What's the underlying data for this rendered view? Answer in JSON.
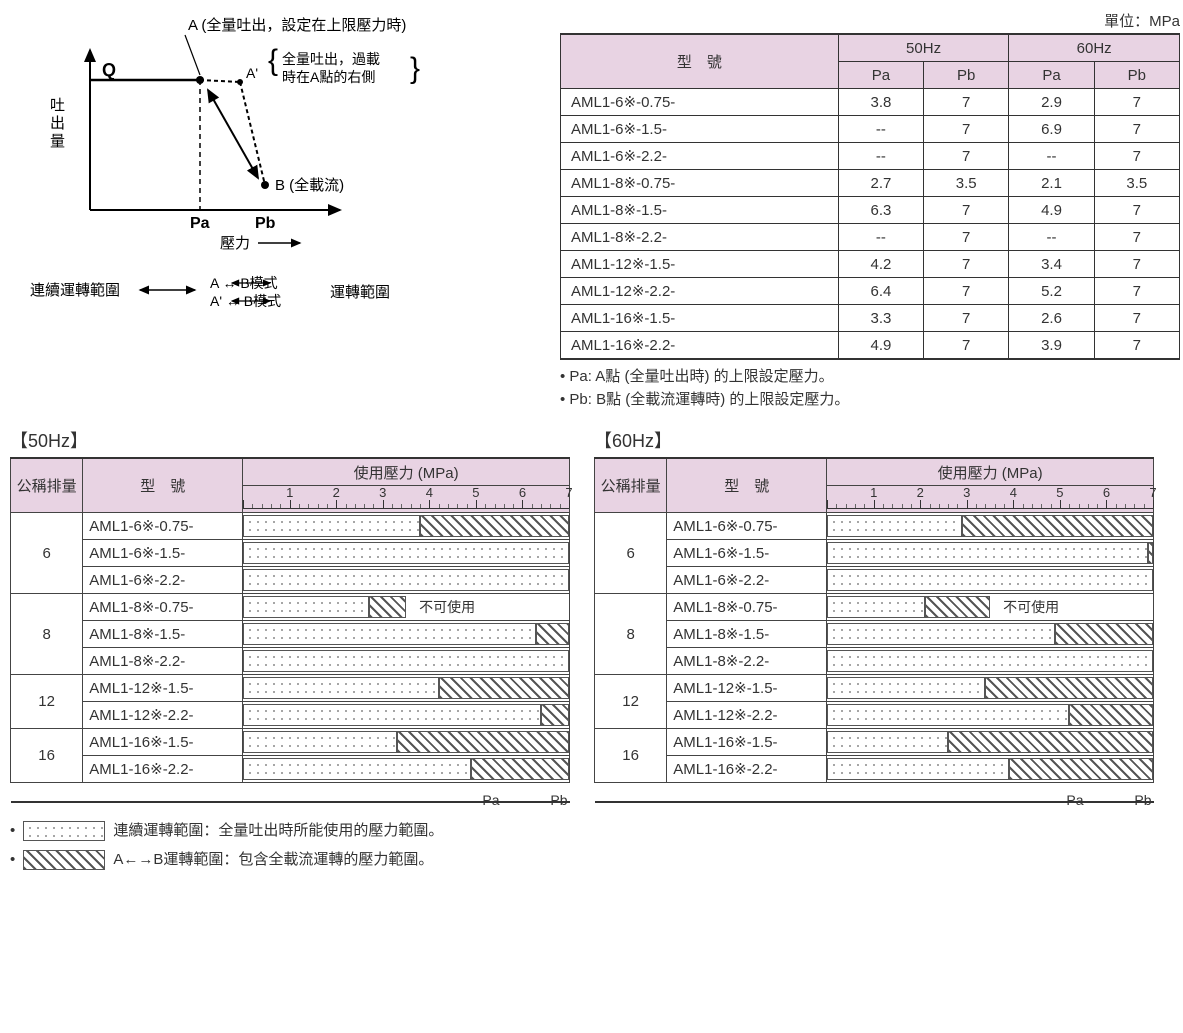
{
  "unit_label": "單位：MPa",
  "diagram": {
    "Q": "Q",
    "y_axis": "吐出量",
    "x_axis": "壓力",
    "Pa": "Pa",
    "Pb": "Pb",
    "A_label": "A (全量吐出，設定在上限壓力時)",
    "A_prime": "A'",
    "A_prime_note1": "全量吐出，過載",
    "A_prime_note2": "時在A點的右側",
    "B_label": "B (全載流)",
    "cont_label": "連續運轉範圍",
    "mode1": "A ↔ B模式",
    "mode2": "A' ↔ B模式",
    "mode_suffix": "運轉範圍"
  },
  "spec_table": {
    "hdr_model": "型　號",
    "hdr_50": "50Hz",
    "hdr_60": "60Hz",
    "hdr_pa": "Pa",
    "hdr_pb": "Pb",
    "rows": [
      {
        "model": "AML1-6※-0.75-",
        "pa50": "3.8",
        "pb50": "7",
        "pa60": "2.9",
        "pb60": "7"
      },
      {
        "model": "AML1-6※-1.5-",
        "pa50": "--",
        "pb50": "7",
        "pa60": "6.9",
        "pb60": "7"
      },
      {
        "model": "AML1-6※-2.2-",
        "pa50": "--",
        "pb50": "7",
        "pa60": "--",
        "pb60": "7"
      },
      {
        "model": "AML1-8※-0.75-",
        "pa50": "2.7",
        "pb50": "3.5",
        "pa60": "2.1",
        "pb60": "3.5"
      },
      {
        "model": "AML1-8※-1.5-",
        "pa50": "6.3",
        "pb50": "7",
        "pa60": "4.9",
        "pb60": "7"
      },
      {
        "model": "AML1-8※-2.2-",
        "pa50": "--",
        "pb50": "7",
        "pa60": "--",
        "pb60": "7"
      },
      {
        "model": "AML1-12※-1.5-",
        "pa50": "4.2",
        "pb50": "7",
        "pa60": "3.4",
        "pb60": "7"
      },
      {
        "model": "AML1-12※-2.2-",
        "pa50": "6.4",
        "pb50": "7",
        "pa60": "5.2",
        "pb60": "7"
      },
      {
        "model": "AML1-16※-1.5-",
        "pa50": "3.3",
        "pb50": "7",
        "pa60": "2.6",
        "pb60": "7"
      },
      {
        "model": "AML1-16※-2.2-",
        "pa50": "4.9",
        "pb50": "7",
        "pa60": "3.9",
        "pb60": "7"
      }
    ]
  },
  "notes": {
    "pa": "• Pa: A點 (全量吐出時) 的上限設定壓力。",
    "pb": "• Pb: B點 (全載流運轉時) 的上限設定壓力。"
  },
  "range": {
    "title50": "【50Hz】",
    "title60": "【60Hz】",
    "hdr_disp": "公稱排量",
    "hdr_model": "型　號",
    "hdr_press": "使用壓力 (MPa)",
    "scale_max": 7,
    "scale_ticks": [
      1,
      2,
      3,
      4,
      5,
      6,
      7
    ],
    "not_usable": "不可使用",
    "pa_label": "Pa",
    "pb_label": "Pb",
    "groups50": [
      {
        "disp": "6",
        "rows": [
          {
            "model": "AML1-6※-0.75-",
            "dots_to": 3.8,
            "hatch_from": 3.8,
            "hatch_to": 7
          },
          {
            "model": "AML1-6※-1.5-",
            "dots_to": 7
          },
          {
            "model": "AML1-6※-2.2-",
            "dots_to": 7
          }
        ]
      },
      {
        "disp": "8",
        "rows": [
          {
            "model": "AML1-8※-0.75-",
            "dots_to": 2.7,
            "hatch_from": 2.7,
            "hatch_to": 3.5,
            "no_use_from": 3.5
          },
          {
            "model": "AML1-8※-1.5-",
            "dots_to": 6.3,
            "hatch_from": 6.3,
            "hatch_to": 7
          },
          {
            "model": "AML1-8※-2.2-",
            "dots_to": 7
          }
        ]
      },
      {
        "disp": "12",
        "rows": [
          {
            "model": "AML1-12※-1.5-",
            "dots_to": 4.2,
            "hatch_from": 4.2,
            "hatch_to": 7
          },
          {
            "model": "AML1-12※-2.2-",
            "dots_to": 6.4,
            "hatch_from": 6.4,
            "hatch_to": 7
          }
        ]
      },
      {
        "disp": "16",
        "rows": [
          {
            "model": "AML1-16※-1.5-",
            "dots_to": 3.3,
            "hatch_from": 3.3,
            "hatch_to": 7
          },
          {
            "model": "AML1-16※-2.2-",
            "dots_to": 4.9,
            "hatch_from": 4.9,
            "hatch_to": 7
          }
        ]
      }
    ],
    "groups60": [
      {
        "disp": "6",
        "rows": [
          {
            "model": "AML1-6※-0.75-",
            "dots_to": 2.9,
            "hatch_from": 2.9,
            "hatch_to": 7
          },
          {
            "model": "AML1-6※-1.5-",
            "dots_to": 6.9,
            "hatch_from": 6.9,
            "hatch_to": 7
          },
          {
            "model": "AML1-6※-2.2-",
            "dots_to": 7
          }
        ]
      },
      {
        "disp": "8",
        "rows": [
          {
            "model": "AML1-8※-0.75-",
            "dots_to": 2.1,
            "hatch_from": 2.1,
            "hatch_to": 3.5,
            "no_use_from": 3.5
          },
          {
            "model": "AML1-8※-1.5-",
            "dots_to": 4.9,
            "hatch_from": 4.9,
            "hatch_to": 7
          },
          {
            "model": "AML1-8※-2.2-",
            "dots_to": 7
          }
        ]
      },
      {
        "disp": "12",
        "rows": [
          {
            "model": "AML1-12※-1.5-",
            "dots_to": 3.4,
            "hatch_from": 3.4,
            "hatch_to": 7
          },
          {
            "model": "AML1-12※-2.2-",
            "dots_to": 5.2,
            "hatch_from": 5.2,
            "hatch_to": 7
          }
        ]
      },
      {
        "disp": "16",
        "rows": [
          {
            "model": "AML1-16※-1.5-",
            "dots_to": 2.6,
            "hatch_from": 2.6,
            "hatch_to": 7
          },
          {
            "model": "AML1-16※-2.2-",
            "dots_to": 3.9,
            "hatch_from": 3.9,
            "hatch_to": 7
          }
        ]
      }
    ]
  },
  "legend": {
    "cont": "連續運轉範圍：全量吐出時所能使用的壓力範圍。",
    "ab": "A←→B運轉範圍：包含全載流運轉的壓力範圍。"
  }
}
